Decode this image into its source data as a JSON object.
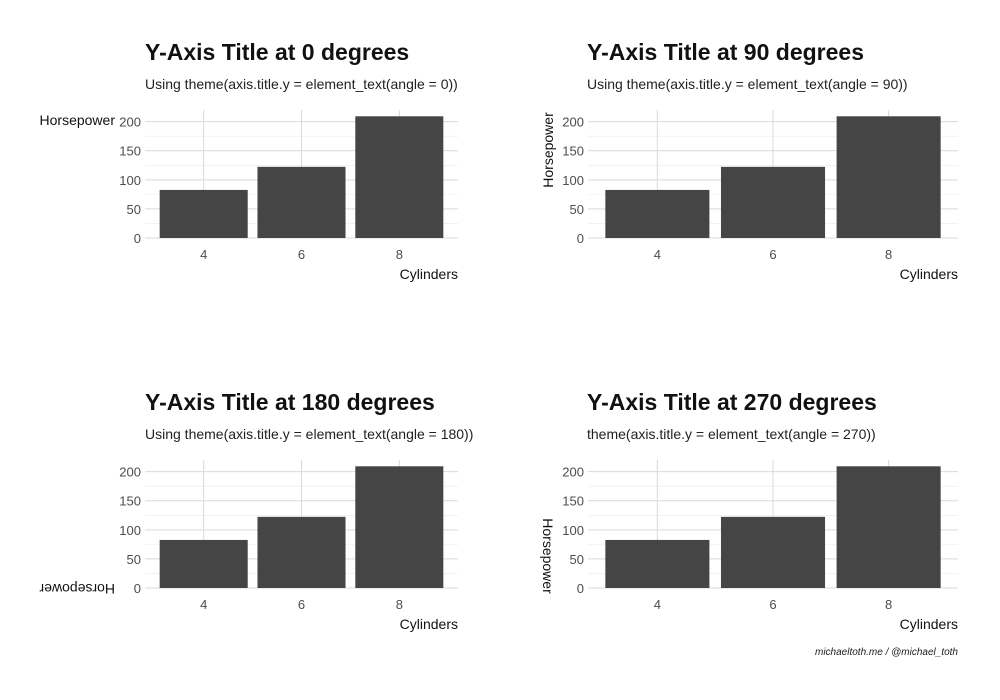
{
  "chart_data": [
    {
      "type": "bar",
      "title": "Y-Axis Title at 0 degrees",
      "subtitle": "Using theme(axis.title.y = element_text(angle = 0))",
      "xlabel": "Cylinders",
      "ylabel": "Horsepower",
      "ylabel_angle": 0,
      "categories": [
        "4",
        "6",
        "8"
      ],
      "values": [
        82.6,
        122.3,
        209.2
      ],
      "yticks": [
        "0",
        "50",
        "100",
        "150",
        "200"
      ],
      "ylim": [
        0,
        220
      ],
      "grid": true
    },
    {
      "type": "bar",
      "title": "Y-Axis Title at 90 degrees",
      "subtitle": "Using theme(axis.title.y = element_text(angle = 90))",
      "xlabel": "Cylinders",
      "ylabel": "Horsepower",
      "ylabel_angle": 90,
      "categories": [
        "4",
        "6",
        "8"
      ],
      "values": [
        82.6,
        122.3,
        209.2
      ],
      "yticks": [
        "0",
        "50",
        "100",
        "150",
        "200"
      ],
      "ylim": [
        0,
        220
      ],
      "grid": true
    },
    {
      "type": "bar",
      "title": "Y-Axis Title at 180 degrees",
      "subtitle": "Using theme(axis.title.y = element_text(angle = 180))",
      "xlabel": "Cylinders",
      "ylabel": "Horsepower",
      "ylabel_angle": 180,
      "categories": [
        "4",
        "6",
        "8"
      ],
      "values": [
        82.6,
        122.3,
        209.2
      ],
      "yticks": [
        "0",
        "50",
        "100",
        "150",
        "200"
      ],
      "ylim": [
        0,
        220
      ],
      "grid": true
    },
    {
      "type": "bar",
      "title": "Y-Axis Title at 270 degrees",
      "subtitle": "theme(axis.title.y = element_text(angle = 270))",
      "xlabel": "Cylinders",
      "ylabel": "Horsepower",
      "ylabel_angle": 270,
      "categories": [
        "4",
        "6",
        "8"
      ],
      "values": [
        82.6,
        122.3,
        209.2
      ],
      "yticks": [
        "0",
        "50",
        "100",
        "150",
        "200"
      ],
      "ylim": [
        0,
        220
      ],
      "grid": true
    }
  ],
  "caption": "michaeltoth.me / @michael_toth",
  "colors": {
    "bar": "#454545",
    "grid_major": "#d9d9d9",
    "grid_minor": "#ebebeb"
  }
}
